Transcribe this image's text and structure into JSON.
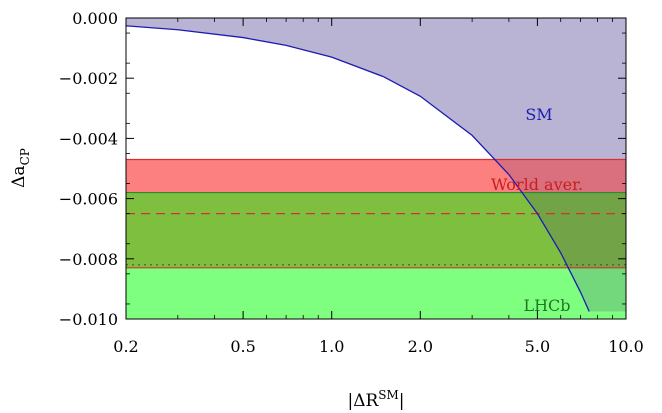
{
  "chart_data": {
    "type": "area",
    "title": "",
    "xlabel": {
      "prefix": "|ΔR",
      "sup": "SM",
      "suffix": "|"
    },
    "ylabel": {
      "prefix": "Δa",
      "sub": "CP"
    },
    "x_scale": "log",
    "xlim": [
      0.2,
      10.0
    ],
    "ylim": [
      -0.01,
      0.0
    ],
    "x_ticks": [
      {
        "value": 0.2,
        "label": "0.2"
      },
      {
        "value": 0.5,
        "label": "0.5"
      },
      {
        "value": 1.0,
        "label": "1.0"
      },
      {
        "value": 2.0,
        "label": "2.0"
      },
      {
        "value": 5.0,
        "label": "5.0"
      },
      {
        "value": 10.0,
        "label": "10.0"
      }
    ],
    "y_ticks": [
      {
        "value": 0.0,
        "label": "0.000"
      },
      {
        "value": -0.002,
        "label": "−0.002"
      },
      {
        "value": -0.004,
        "label": "−0.004"
      },
      {
        "value": -0.006,
        "label": "−0.006"
      },
      {
        "value": -0.008,
        "label": "−0.008"
      },
      {
        "value": -0.01,
        "label": "−0.010"
      }
    ],
    "sm_curve": {
      "label": "SM",
      "color": "#1c1cb4",
      "fill": "#d5d3ea",
      "x": [
        0.2,
        0.3,
        0.5,
        0.7,
        1.0,
        1.5,
        2.0,
        3.0,
        4.0,
        5.0,
        6.0,
        7.0,
        7.5
      ],
      "y": [
        -0.00026,
        -0.00039,
        -0.00065,
        -0.00091,
        -0.0013,
        -0.00195,
        -0.0026,
        -0.0039,
        -0.0052,
        -0.0065,
        -0.0078,
        -0.0091,
        -0.00975
      ]
    },
    "bands": [
      {
        "label": "World aver.",
        "y_low": -0.0083,
        "y_high": -0.0047,
        "fill": "#fd8080",
        "edge": "#d63030",
        "central": -0.0065,
        "label_color": "#c81e1e"
      },
      {
        "label": "LHCb",
        "y_low": -0.01,
        "y_high": -0.0058,
        "fill": "#7fff7f",
        "edge": "#2f8a2f",
        "central": -0.0082,
        "label_color": "#1e7a1e"
      }
    ],
    "overlap_fill": "#7fbf3f"
  }
}
